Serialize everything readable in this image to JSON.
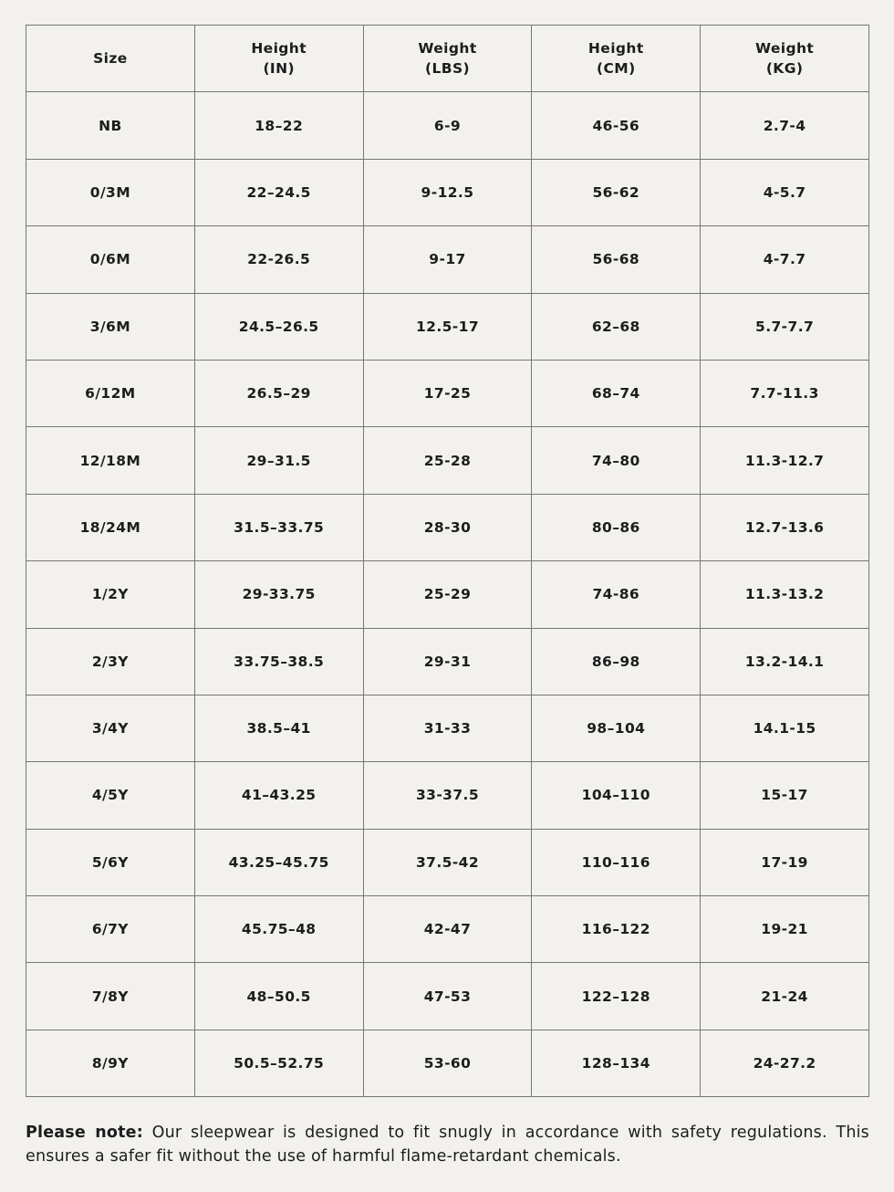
{
  "page": {
    "background_color": "#f2f1ee",
    "border_color": "#767676",
    "text_color": "#1d1d1d"
  },
  "table": {
    "headers": [
      "Size",
      "Height\n(IN)",
      "Weight\n(LBS)",
      "Height\n(CM)",
      "Weight\n(KG)"
    ],
    "rows": [
      [
        "NB",
        "18–22",
        "6-9",
        "46-56",
        "2.7-4"
      ],
      [
        "0/3M",
        "22–24.5",
        "9-12.5",
        "56-62",
        "4-5.7"
      ],
      [
        "0/6M",
        "22-26.5",
        "9-17",
        "56-68",
        "4-7.7"
      ],
      [
        "3/6M",
        "24.5–26.5",
        "12.5-17",
        "62–68",
        "5.7-7.7"
      ],
      [
        "6/12M",
        "26.5–29",
        "17-25",
        "68–74",
        "7.7-11.3"
      ],
      [
        "12/18M",
        "29–31.5",
        "25-28",
        "74–80",
        "11.3-12.7"
      ],
      [
        "18/24M",
        "31.5–33.75",
        "28-30",
        "80–86",
        "12.7-13.6"
      ],
      [
        "1/2Y",
        "29-33.75",
        "25-29",
        "74-86",
        "11.3-13.2"
      ],
      [
        "2/3Y",
        "33.75–38.5",
        "29-31",
        "86–98",
        "13.2-14.1"
      ],
      [
        "3/4Y",
        "38.5–41",
        "31-33",
        "98–104",
        "14.1-15"
      ],
      [
        "4/5Y",
        "41–43.25",
        "33-37.5",
        "104–110",
        "15-17"
      ],
      [
        "5/6Y",
        "43.25–45.75",
        "37.5-42",
        "110–116",
        "17-19"
      ],
      [
        "6/7Y",
        "45.75–48",
        "42-47",
        "116–122",
        "19-21"
      ],
      [
        "7/8Y",
        "48–50.5",
        "47-53",
        "122–128",
        "21-24"
      ],
      [
        "8/9Y",
        "50.5–52.75",
        "53-60",
        "128–134",
        "24-27.2"
      ]
    ]
  },
  "note": {
    "label": "Please note:",
    "text": " Our sleepwear is designed to fit snugly in accordance with safety regulations. This ensures a safer fit without the use of harmful flame-retardant chemicals."
  }
}
